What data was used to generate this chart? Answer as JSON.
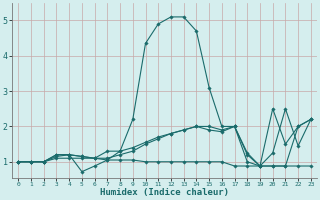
{
  "xlabel": "Humidex (Indice chaleur)",
  "bg_color": "#d5eeee",
  "grid_color": "#c8a8a8",
  "line_color": "#1a6b6b",
  "xlim": [
    -0.5,
    23.5
  ],
  "ylim": [
    0.55,
    5.5
  ],
  "yticks": [
    1,
    2,
    3,
    4,
    5
  ],
  "xticks": [
    0,
    1,
    2,
    3,
    4,
    5,
    6,
    7,
    8,
    9,
    10,
    11,
    12,
    13,
    14,
    15,
    16,
    17,
    18,
    19,
    20,
    21,
    22,
    23
  ],
  "lines": [
    {
      "x": [
        0,
        1,
        2,
        3,
        4,
        5,
        6,
        7,
        8,
        9,
        10,
        11,
        12,
        13,
        14,
        15,
        16,
        17,
        18,
        19,
        20,
        21,
        22,
        23
      ],
      "y": [
        1.0,
        1.0,
        1.0,
        1.2,
        1.2,
        0.72,
        0.88,
        1.05,
        1.05,
        1.05,
        1.0,
        1.0,
        1.0,
        1.0,
        1.0,
        1.0,
        1.0,
        0.88,
        0.88,
        0.88,
        0.88,
        0.88,
        0.88,
        0.88
      ]
    },
    {
      "x": [
        0,
        1,
        2,
        3,
        4,
        5,
        6,
        7,
        8,
        9,
        10,
        11,
        12,
        13,
        14,
        15,
        16,
        17,
        18,
        19,
        20,
        21,
        22,
        23
      ],
      "y": [
        1.0,
        1.0,
        1.0,
        1.2,
        1.2,
        1.15,
        1.1,
        1.05,
        1.3,
        2.2,
        4.35,
        4.9,
        5.1,
        5.1,
        4.7,
        3.1,
        2.0,
        2.0,
        1.0,
        0.88,
        1.25,
        2.5,
        1.45,
        2.2
      ]
    },
    {
      "x": [
        0,
        1,
        2,
        3,
        4,
        5,
        6,
        7,
        8,
        9,
        10,
        11,
        12,
        13,
        14,
        15,
        16,
        17,
        18,
        19,
        20,
        21,
        22,
        23
      ],
      "y": [
        1.0,
        1.0,
        1.0,
        1.15,
        1.2,
        1.15,
        1.1,
        1.3,
        1.3,
        1.4,
        1.55,
        1.7,
        1.8,
        1.9,
        2.0,
        2.0,
        1.9,
        2.0,
        1.25,
        0.88,
        2.5,
        1.5,
        2.0,
        2.2
      ]
    },
    {
      "x": [
        0,
        1,
        2,
        3,
        4,
        5,
        6,
        7,
        8,
        9,
        10,
        11,
        12,
        13,
        14,
        15,
        16,
        17,
        18,
        19,
        20,
        21,
        22,
        23
      ],
      "y": [
        1.0,
        1.0,
        1.0,
        1.1,
        1.1,
        1.1,
        1.1,
        1.1,
        1.2,
        1.3,
        1.5,
        1.65,
        1.8,
        1.9,
        2.0,
        1.9,
        1.85,
        2.0,
        1.2,
        0.88,
        0.88,
        0.88,
        2.0,
        2.2
      ]
    }
  ]
}
